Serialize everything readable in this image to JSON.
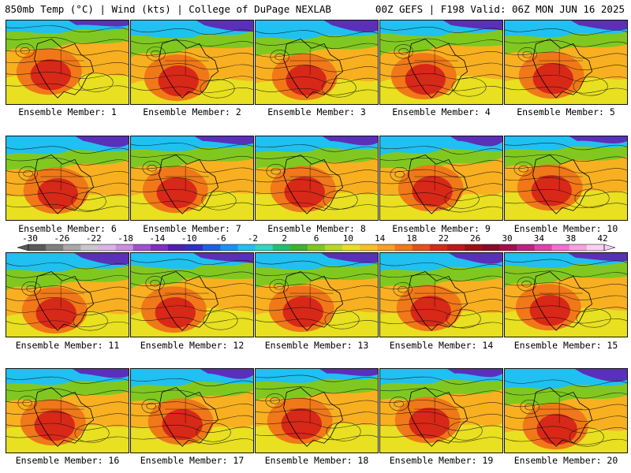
{
  "header": {
    "left": "850mb Temp (°C) | Wind (kts) | College of DuPage NEXLAB",
    "right": "00Z GEFS | F198 Valid: 06Z MON JUN 16 2025"
  },
  "members": [
    "Ensemble Member: 1",
    "Ensemble Member: 2",
    "Ensemble Member: 3",
    "Ensemble Member: 4",
    "Ensemble Member: 5",
    "Ensemble Member: 6",
    "Ensemble Member: 7",
    "Ensemble Member: 8",
    "Ensemble Member: 9",
    "Ensemble Member: 10",
    "Ensemble Member: 11",
    "Ensemble Member: 12",
    "Ensemble Member: 13",
    "Ensemble Member: 14",
    "Ensemble Member: 15",
    "Ensemble Member: 16",
    "Ensemble Member: 17",
    "Ensemble Member: 18",
    "Ensemble Member: 19",
    "Ensemble Member: 20"
  ],
  "colorbar": {
    "tick_labels": [
      "-30",
      "-26",
      "-22",
      "-18",
      "-14",
      "-10",
      "-6",
      "-2",
      "2",
      "6",
      "10",
      "14",
      "18",
      "22",
      "26",
      "30",
      "34",
      "38",
      "42"
    ],
    "colors": [
      "#5a5a5a",
      "#808080",
      "#a8a8a8",
      "#c8c8c8",
      "#d9b3e8",
      "#c98fe0",
      "#a050d0",
      "#7f2fc0",
      "#5020b0",
      "#3030c8",
      "#2060e0",
      "#2090f0",
      "#20c0f0",
      "#30d8c0",
      "#20c070",
      "#40b030",
      "#80c820",
      "#b8d820",
      "#e8e020",
      "#f8c020",
      "#f8a020",
      "#f07818",
      "#e85018",
      "#d82818",
      "#c01818",
      "#a01010",
      "#880c28",
      "#a01050",
      "#c02080",
      "#e040b0",
      "#f070d0",
      "#f8a0e0",
      "#f8d0f0"
    ]
  },
  "colors": {
    "warm_core": "#d82818",
    "hot": "#f07818",
    "warm": "#f8b020",
    "mild": "#e8e020",
    "cool": "#80c820",
    "cold": "#20c0f0",
    "coldest": "#5a30b8",
    "contour": "#111111"
  }
}
